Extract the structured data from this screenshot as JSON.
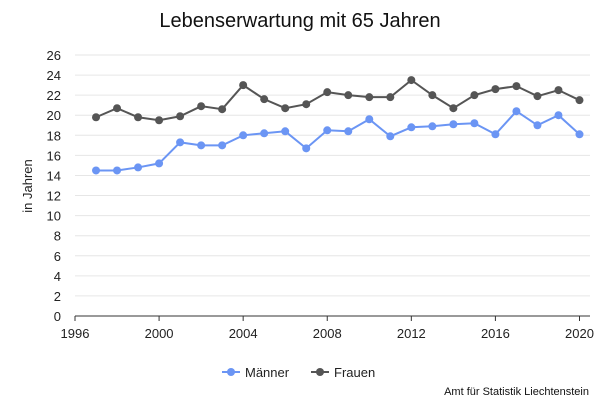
{
  "chart_data": {
    "type": "line",
    "title": "Lebenserwartung mit 65 Jahren",
    "ylabel": "in Jahren",
    "xlabel": "",
    "xlim": [
      1996,
      2020.5
    ],
    "ylim": [
      0,
      26
    ],
    "x_ticks": [
      1996,
      2000,
      2004,
      2008,
      2012,
      2016,
      2020
    ],
    "y_ticks": [
      0,
      2,
      4,
      6,
      8,
      10,
      12,
      14,
      16,
      18,
      20,
      22,
      24,
      26
    ],
    "grid": true,
    "legend_position": "bottom",
    "x": [
      1997,
      1998,
      1999,
      2000,
      2001,
      2002,
      2003,
      2004,
      2005,
      2006,
      2007,
      2008,
      2009,
      2010,
      2011,
      2012,
      2013,
      2014,
      2015,
      2016,
      2017,
      2018,
      2019,
      2020
    ],
    "series": [
      {
        "name": "Männer",
        "color": "#6b95f4",
        "values": [
          14.5,
          14.5,
          14.8,
          15.2,
          17.3,
          17.0,
          17.0,
          18.0,
          18.2,
          18.4,
          16.7,
          18.5,
          18.4,
          19.6,
          17.9,
          18.8,
          18.9,
          19.1,
          19.2,
          18.1,
          20.4,
          19.0,
          20.0,
          18.1
        ]
      },
      {
        "name": "Frauen",
        "color": "#555555",
        "values": [
          19.8,
          20.7,
          19.8,
          19.5,
          19.9,
          20.9,
          20.6,
          23.0,
          21.6,
          20.7,
          21.1,
          22.3,
          22.0,
          21.8,
          21.8,
          23.5,
          22.0,
          20.7,
          22.0,
          22.6,
          22.9,
          21.9,
          22.5,
          21.5
        ]
      }
    ],
    "source": "Amt für Statistik Liechtenstein"
  }
}
